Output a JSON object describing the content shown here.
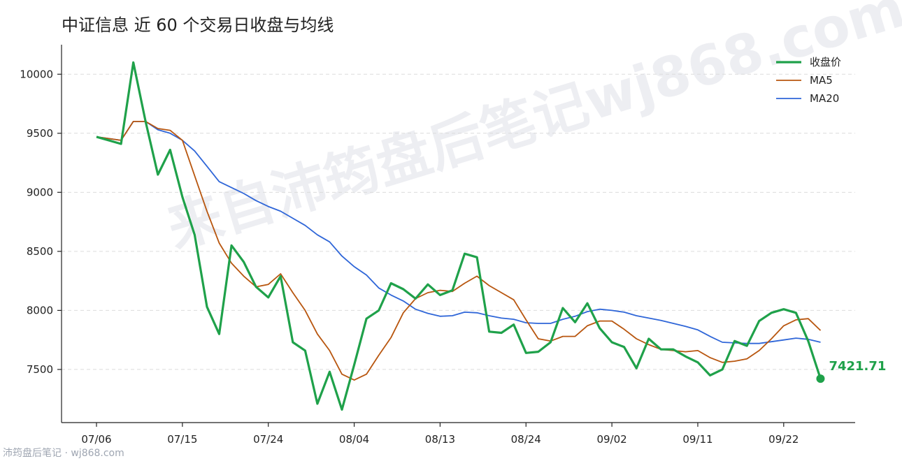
{
  "title": "中证信息 近 60 个交易日收盘与均线",
  "footer": "沛筠盘后笔记 · wj868.com",
  "watermark": "来自沛筠盘后笔记wj868.com",
  "chart_data": {
    "type": "line",
    "title": "中证信息 近 60 个交易日收盘与均线",
    "xlabel": "",
    "ylabel": "",
    "ylim": [
      7050,
      10250
    ],
    "yticks": [
      7500,
      8000,
      8500,
      9000,
      9500,
      10000
    ],
    "xtick_labels": [
      "07/06",
      "07/15",
      "07/24",
      "08/04",
      "08/13",
      "08/24",
      "09/02",
      "09/11",
      "09/22"
    ],
    "xtick_index": [
      0,
      7,
      14,
      21,
      28,
      35,
      42,
      49,
      56
    ],
    "grid": "horizontal dashed",
    "legend": "top-right",
    "end_label": "7421.71",
    "series": [
      {
        "name": "收盘价",
        "color": "#1fa14a",
        "values": [
          9470,
          9440,
          9410,
          10100,
          9600,
          9150,
          9360,
          8960,
          8640,
          8030,
          7800,
          8550,
          8410,
          8200,
          8110,
          8290,
          7730,
          7660,
          7210,
          7480,
          7160,
          7540,
          7930,
          8000,
          8230,
          8180,
          8100,
          8220,
          8130,
          8170,
          8480,
          8450,
          7820,
          7810,
          7880,
          7640,
          7650,
          7730,
          8020,
          7900,
          8060,
          7850,
          7730,
          7690,
          7510,
          7760,
          7670,
          7670,
          7610,
          7560,
          7450,
          7500,
          7740,
          7700,
          7910,
          7980,
          8010,
          7980,
          7740,
          7421.71
        ]
      },
      {
        "name": "MA5",
        "color": "#b8560f",
        "values": [
          9470,
          9455,
          9440,
          9600,
          9600,
          9540,
          9525,
          9440,
          9140,
          8840,
          8570,
          8400,
          8290,
          8200,
          8220,
          8310,
          8150,
          8000,
          7800,
          7660,
          7460,
          7410,
          7460,
          7620,
          7770,
          7980,
          8100,
          8150,
          8170,
          8160,
          8230,
          8290,
          8210,
          8150,
          8090,
          7920,
          7760,
          7740,
          7780,
          7780,
          7870,
          7910,
          7910,
          7840,
          7760,
          7710,
          7670,
          7660,
          7650,
          7660,
          7600,
          7560,
          7570,
          7590,
          7660,
          7760,
          7870,
          7920,
          7930,
          7830
        ]
      },
      {
        "name": "MA20",
        "color": "#2f66d8",
        "values": [
          9470,
          9455,
          9440,
          9600,
          9600,
          9530,
          9500,
          9440,
          9350,
          9220,
          9090,
          9040,
          8990,
          8930,
          8880,
          8840,
          8780,
          8720,
          8640,
          8580,
          8460,
          8370,
          8300,
          8190,
          8130,
          8080,
          8010,
          7975,
          7950,
          7955,
          7985,
          7980,
          7955,
          7935,
          7925,
          7895,
          7890,
          7890,
          7925,
          7950,
          7990,
          8010,
          8000,
          7985,
          7955,
          7935,
          7915,
          7890,
          7865,
          7835,
          7780,
          7730,
          7725,
          7720,
          7720,
          7735,
          7750,
          7765,
          7755,
          7730
        ]
      }
    ]
  }
}
